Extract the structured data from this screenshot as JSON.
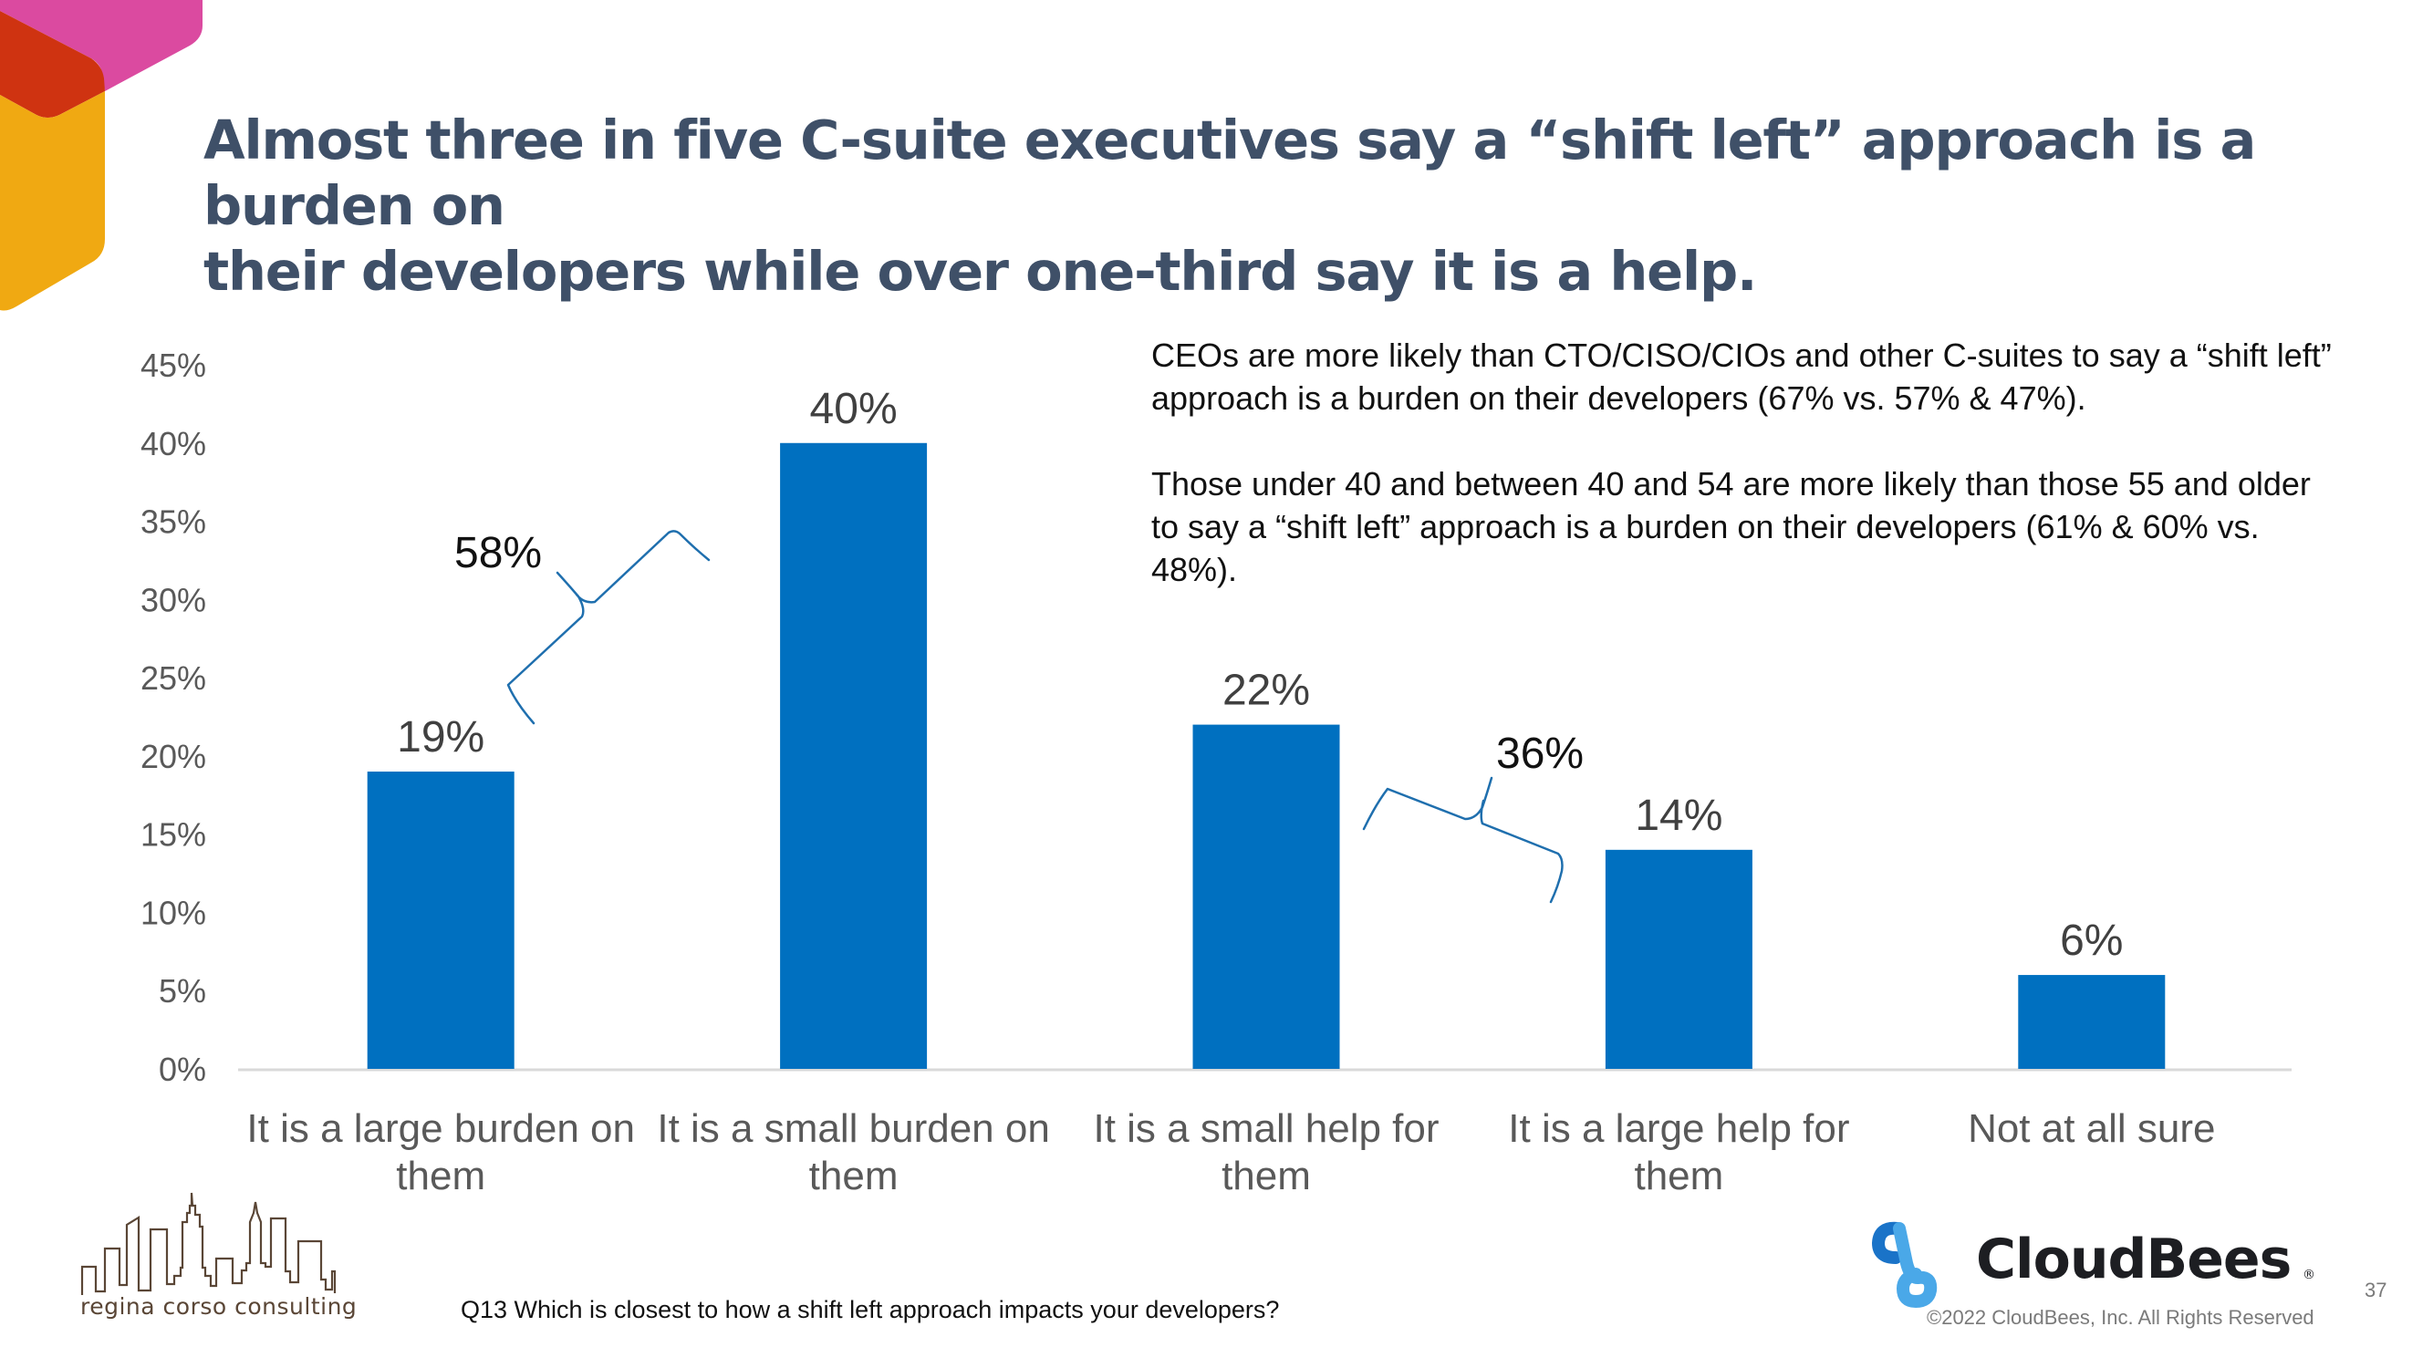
{
  "slide": {
    "title_lines": [
      "Almost three in five C-suite executives say a “shift left” approach is a burden on",
      "their developers while over one-third say it is a help."
    ],
    "annotation_paragraphs": [
      "CEOs are more likely than CTO/CISO/CIOs and other C-suites to say a “shift left” approach is a burden on their developers (67% vs. 57% & 47%).",
      "Those under 40 and between 40 and 54 are more likely than those 55 and older to say a “shift left” approach is a burden on their developers (61% & 60% vs. 48%)."
    ],
    "footnote": "Q13 Which is closest to how a shift left approach impacts your developers?",
    "page_number": "37",
    "consultancy_name": "regina corso consulting",
    "brand_name": "CloudBees",
    "brand_reg_mark": "®",
    "copyright": "©2022 CloudBees, Inc. All Rights Reserved"
  },
  "colors": {
    "title": "#3f5068",
    "bar": "#0070c0",
    "bracket": "#1f6fae",
    "corner_pink": "#db4aa0",
    "corner_red": "#cf3311",
    "corner_yellow": "#f0a912",
    "cloudbees_dark_blue": "#1a73c8",
    "cloudbees_light_blue": "#4aa8e8"
  },
  "chart_data": {
    "type": "bar",
    "title": "",
    "xlabel": "",
    "ylabel": "",
    "categories": [
      [
        "It is a large burden on",
        "them"
      ],
      [
        "It is a small burden on",
        "them"
      ],
      [
        "It is a small help for",
        "them"
      ],
      [
        "It is a large help for",
        "them"
      ],
      [
        "Not at all sure"
      ]
    ],
    "values": [
      19,
      40,
      22,
      14,
      6
    ],
    "data_labels": [
      "19%",
      "40%",
      "22%",
      "14%",
      "6%"
    ],
    "ylim": [
      0,
      45
    ],
    "yticks": [
      0,
      5,
      10,
      15,
      20,
      25,
      30,
      35,
      40,
      45
    ],
    "ytick_labels": [
      "0%",
      "5%",
      "10%",
      "15%",
      "20%",
      "25%",
      "30%",
      "35%",
      "40%",
      "45%"
    ],
    "grid": false,
    "legend": "none",
    "bracket_annotations": [
      {
        "label": "58%",
        "groups": [
          "It is a large burden on them",
          "It is a small burden on them"
        ],
        "value": 58
      },
      {
        "label": "36%",
        "groups": [
          "It is a small help for them",
          "It is a large help for them"
        ],
        "value": 36
      }
    ]
  }
}
